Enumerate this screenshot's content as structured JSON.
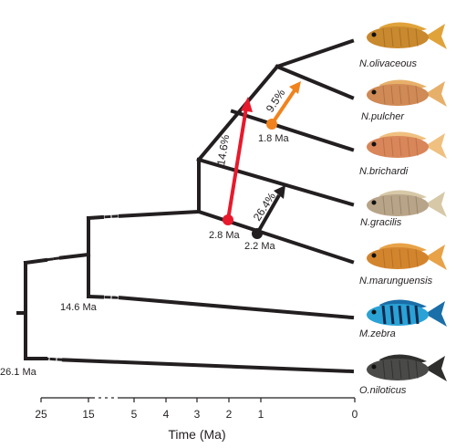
{
  "species": [
    {
      "name": "N.olivaceous",
      "body": "#c9892e",
      "fin": "#e0a33a",
      "stripe": "#8a5a1a"
    },
    {
      "name": "N.pulcher",
      "body": "#cf8a55",
      "fin": "#e7b06a",
      "stripe": "#9a5a3a"
    },
    {
      "name": "N.brichardi",
      "body": "#d8865a",
      "fin": "#f0c080",
      "stripe": "#a0603a"
    },
    {
      "name": "N.gracilis",
      "body": "#b8a488",
      "fin": "#d7c8a8",
      "stripe": "#7a6a50"
    },
    {
      "name": "N.marunguensis",
      "body": "#d3852e",
      "fin": "#e8a248",
      "stripe": "#9a5c1c"
    },
    {
      "name": "M.zebra",
      "body": "#2aa2d6",
      "fin": "#1b6fa8",
      "stripe": "#0c1e40"
    },
    {
      "name": "O.niloticus",
      "body": "#4a4a48",
      "fin": "#2f2f2e",
      "stripe": "#1a1a1a"
    }
  ],
  "node_ages": [
    "14.6 Ma",
    "26.1 Ma",
    "2.8 Ma",
    "2.2 Ma",
    "1.8 Ma"
  ],
  "arrows": [
    {
      "label": "14.6%",
      "color": "#e8192c"
    },
    {
      "label": "9.5%",
      "color": "#f0831e"
    },
    {
      "label": "26.4%",
      "color": "#231f20"
    }
  ],
  "axis": {
    "title": "Time (Ma)",
    "ticks": [
      "25",
      "15",
      "5",
      "4",
      "3",
      "2",
      "1",
      "0"
    ]
  },
  "colors": {
    "branch": "#231f20"
  }
}
